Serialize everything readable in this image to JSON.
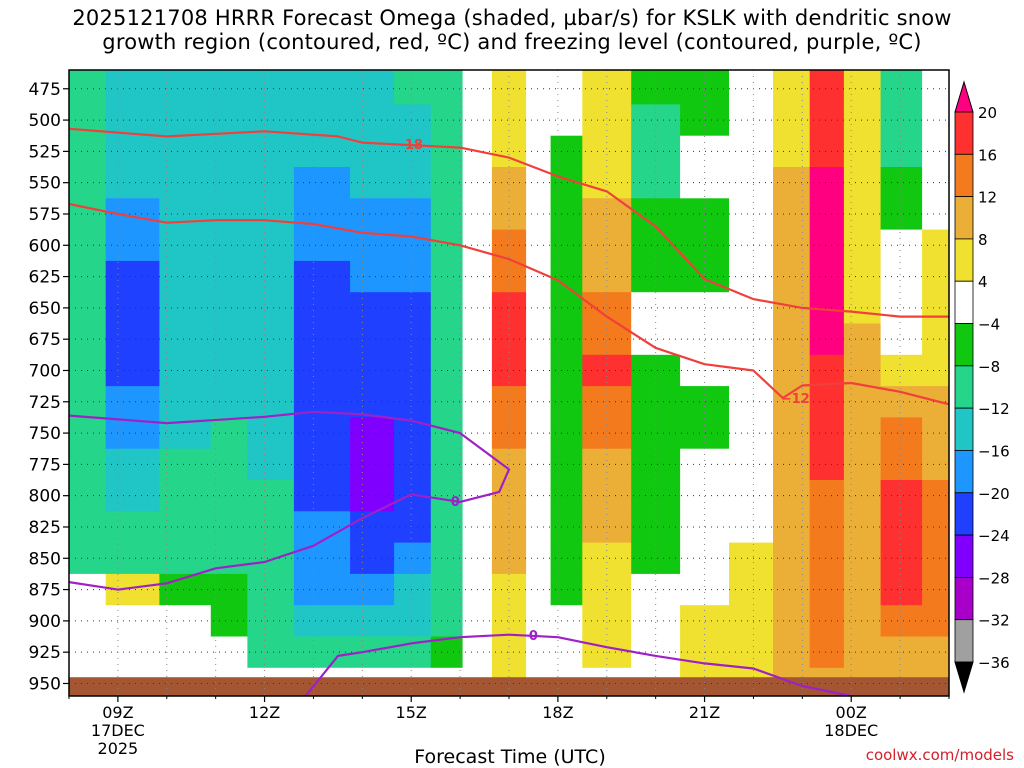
{
  "title_line1": "2025121708 HRRR Forecast Omega (shaded, µbar/s) for KSLK with dendritic snow",
  "title_line2": "growth region (contoured, red, ºC) and freezing level (contoured, purple, ºC)",
  "credit": "coolwx.com/models",
  "chart_data": {
    "type": "heatmap",
    "xlabel": "Forecast Time (UTC)",
    "ylabel": "",
    "x_ticks": [
      {
        "hour": 9,
        "lines": [
          "09Z",
          "17DEC",
          "2025"
        ]
      },
      {
        "hour": 12,
        "lines": [
          "12Z"
        ]
      },
      {
        "hour": 15,
        "lines": [
          "15Z"
        ]
      },
      {
        "hour": 18,
        "lines": [
          "18Z"
        ]
      },
      {
        "hour": 21,
        "lines": [
          "21Z"
        ]
      },
      {
        "hour": 24,
        "lines": [
          "00Z",
          "18DEC"
        ]
      }
    ],
    "xlim": [
      8,
      26
    ],
    "ylim": [
      960,
      460
    ],
    "y_scale": "pressure (hPa)",
    "y_ticks": [
      475,
      500,
      525,
      550,
      575,
      600,
      625,
      650,
      675,
      700,
      725,
      750,
      775,
      800,
      825,
      850,
      875,
      900,
      925,
      950
    ],
    "grid": true,
    "colorbar": {
      "levels": [
        20,
        16,
        12,
        8,
        4,
        -4,
        -8,
        -12,
        -16,
        -20,
        -24,
        -28,
        -32,
        -36
      ],
      "labels": [
        "20",
        "16",
        "12",
        "8",
        "4",
        "−4",
        "−8",
        "−12",
        "−16",
        "−20",
        "−24",
        "−28",
        "−32",
        "−36"
      ],
      "colors": [
        "#ff0080",
        "#ff3030",
        "#f47a1e",
        "#ebae37",
        "#f0e030",
        "#ffffff",
        "#10c810",
        "#24d58a",
        "#20c6c6",
        "#1e96ff",
        "#2040ff",
        "#8000ff",
        "#a800c8",
        "#a0a0a0",
        "#000000"
      ]
    },
    "omega_field": {
      "description_units": "µbar/s",
      "columns": [
        {
          "hour": 8.3,
          "omega": [
            -10,
            -10,
            -11,
            -11,
            -11,
            -11,
            -11,
            -11,
            -11,
            -11,
            -10,
            -10,
            -9,
            -9,
            -8,
            -8,
            0,
            0,
            0,
            0
          ]
        },
        {
          "hour": 9.2,
          "omega": [
            -13,
            -13,
            -14,
            -15,
            -17,
            -18,
            -20,
            -21,
            -21,
            -20,
            -18,
            -16,
            -14,
            -12,
            -10,
            -8,
            4,
            0,
            0,
            0
          ]
        },
        {
          "hour": 10.5,
          "omega": [
            -13,
            -13,
            -14,
            -14,
            -15,
            -15,
            -15,
            -15,
            -15,
            -14,
            -13,
            -12,
            -11,
            -10,
            -9,
            -8,
            -5,
            -3,
            0,
            0
          ]
        },
        {
          "hour": 11.3,
          "omega": [
            -14,
            -14,
            -14,
            -14,
            -14,
            -14,
            -14,
            -13,
            -13,
            -13,
            -12,
            -11,
            -11,
            -10,
            -9,
            -8,
            -6,
            -4,
            -2,
            0
          ]
        },
        {
          "hour": 12.0,
          "omega": [
            -13,
            -13,
            -13,
            -13,
            -14,
            -14,
            -14,
            -14,
            -13,
            -13,
            -13,
            -12,
            -12,
            -11,
            -10,
            -10,
            -9,
            -9,
            -8,
            0
          ]
        },
        {
          "hour": 13.2,
          "omega": [
            -13,
            -14,
            -15,
            -16,
            -17,
            -18,
            -21,
            -22,
            -22,
            -21,
            -21,
            -20,
            -20,
            -20,
            -19,
            -18,
            -16,
            -13,
            -9,
            0
          ]
        },
        {
          "hour": 14.3,
          "omega": [
            -12,
            -13,
            -14,
            -15,
            -17,
            -18,
            -19,
            -20,
            -21,
            -22,
            -23,
            -25,
            -25,
            -24,
            -22,
            -20,
            -17,
            -14,
            -9,
            0
          ]
        },
        {
          "hour": 15.0,
          "omega": [
            -11,
            -12,
            -14,
            -15,
            -16,
            -17,
            -18,
            -20,
            -21,
            -22,
            -23,
            -23,
            -22,
            -22,
            -20,
            -18,
            -15,
            -12,
            -8,
            0
          ]
        },
        {
          "hour": 15.8,
          "omega": [
            -9,
            -9,
            -10,
            -10,
            -10,
            -10,
            -10,
            -10,
            -10,
            -10,
            -10,
            -10,
            -10,
            -10,
            -10,
            -10,
            -9,
            -9,
            -6,
            0
          ]
        },
        {
          "hour": 16.3,
          "omega": [
            0,
            0,
            0,
            0,
            0,
            0,
            0,
            0,
            0,
            0,
            0,
            0,
            0,
            0,
            0,
            0,
            0,
            0,
            0,
            0
          ]
        },
        {
          "hour": 17.0,
          "omega": [
            4,
            5,
            6,
            8,
            10,
            12,
            15,
            17,
            18,
            17,
            15,
            13,
            11,
            10,
            9,
            8,
            7,
            6,
            5,
            4
          ]
        },
        {
          "hour": 17.7,
          "omega": [
            0,
            0,
            0,
            0,
            0,
            0,
            0,
            0,
            0,
            0,
            0,
            0,
            0,
            0,
            0,
            0,
            0,
            0,
            0,
            0
          ]
        },
        {
          "hour": 18.0,
          "omega": [
            0,
            0,
            -5,
            -6,
            -7,
            -7,
            -7,
            -7,
            -6,
            -6,
            -6,
            -6,
            -6,
            -6,
            -6,
            -5,
            -4,
            0,
            0,
            0
          ]
        },
        {
          "hour": 19.0,
          "omega": [
            4,
            4,
            5,
            6,
            8,
            9,
            10,
            12,
            14,
            16,
            14,
            12,
            10,
            9,
            8,
            7,
            6,
            5,
            4,
            3
          ]
        },
        {
          "hour": 20.0,
          "omega": [
            -7,
            -8,
            -9,
            -8,
            -6,
            -5,
            -4,
            0,
            0,
            -5,
            -6,
            -7,
            -7,
            -7,
            -6,
            -5,
            0,
            0,
            0,
            0
          ]
        },
        {
          "hour": 21.0,
          "omega": [
            -5,
            -5,
            0,
            0,
            -6,
            -7,
            -6,
            0,
            0,
            0,
            -5,
            -6,
            0,
            0,
            0,
            0,
            0,
            4,
            4,
            4
          ]
        },
        {
          "hour": 22.0,
          "omega": [
            0,
            0,
            0,
            0,
            0,
            0,
            0,
            0,
            0,
            0,
            0,
            0,
            0,
            0,
            0,
            4,
            5,
            5,
            5,
            4
          ]
        },
        {
          "hour": 22.8,
          "omega": [
            5,
            6,
            7,
            8,
            9,
            10,
            10,
            10,
            10,
            10,
            10,
            10,
            10,
            10,
            10,
            10,
            10,
            10,
            9,
            8
          ]
        },
        {
          "hour": 23.5,
          "omega": [
            16,
            18,
            19,
            20,
            21,
            21,
            21,
            20,
            20,
            19,
            18,
            17,
            16,
            14,
            13,
            13,
            14,
            14,
            12,
            9
          ]
        },
        {
          "hour": 24.2,
          "omega": [
            4,
            4,
            5,
            5,
            6,
            6,
            6,
            7,
            8,
            9,
            9,
            9,
            9,
            9,
            10,
            10,
            10,
            10,
            9,
            8
          ]
        },
        {
          "hour": 25.0,
          "omega": [
            -8,
            -9,
            -8,
            -6,
            -4,
            0,
            0,
            0,
            0,
            5,
            8,
            12,
            15,
            17,
            18,
            19,
            17,
            14,
            11,
            8
          ]
        },
        {
          "hour": 25.9,
          "omega": [
            0,
            0,
            0,
            0,
            0,
            4,
            4,
            5,
            6,
            7,
            8,
            9,
            10,
            12,
            13,
            14,
            13,
            12,
            10,
            8
          ]
        }
      ]
    },
    "contours": [
      {
        "label": "-18",
        "color": "#f0403c",
        "points": [
          [
            8,
            507
          ],
          [
            10,
            513
          ],
          [
            12,
            509
          ],
          [
            13.5,
            513
          ],
          [
            14,
            518
          ],
          [
            15,
            520
          ],
          [
            16,
            522
          ],
          [
            17,
            530
          ],
          [
            18,
            545
          ],
          [
            19,
            557
          ],
          [
            20,
            585
          ],
          [
            21,
            627
          ],
          [
            22,
            643
          ],
          [
            23,
            650
          ],
          [
            24,
            653
          ],
          [
            25,
            657
          ],
          [
            26,
            657
          ]
        ]
      },
      {
        "label": "",
        "color": "#f0403c",
        "points": [
          [
            8,
            567
          ],
          [
            9,
            575
          ],
          [
            10,
            582
          ],
          [
            11,
            580
          ],
          [
            12,
            580
          ],
          [
            13,
            583
          ],
          [
            14,
            590
          ],
          [
            15,
            593
          ],
          [
            16,
            600
          ],
          [
            17,
            611
          ],
          [
            18,
            628
          ],
          [
            19,
            657
          ],
          [
            20,
            682
          ],
          [
            21,
            695
          ],
          [
            22,
            700
          ],
          [
            22.6,
            722
          ],
          [
            23,
            712
          ],
          [
            24,
            710
          ],
          [
            25,
            717
          ],
          [
            26,
            727
          ]
        ]
      },
      {
        "label": "0",
        "color": "#a020c8",
        "points": [
          [
            8,
            736
          ],
          [
            10,
            742
          ],
          [
            12,
            737
          ],
          [
            13,
            733
          ],
          [
            14,
            735
          ],
          [
            15,
            740
          ],
          [
            16,
            750
          ],
          [
            17,
            779
          ],
          [
            16.8,
            797
          ],
          [
            16,
            805
          ],
          [
            15,
            799
          ],
          [
            14,
            818
          ],
          [
            13,
            840
          ],
          [
            12,
            853
          ],
          [
            11,
            858
          ],
          [
            10,
            870
          ],
          [
            9,
            875
          ],
          [
            8,
            869
          ]
        ]
      },
      {
        "label": "0",
        "color": "#a020c8",
        "points": [
          [
            12.8,
            962
          ],
          [
            13.5,
            928
          ],
          [
            14,
            925
          ],
          [
            15,
            918
          ],
          [
            16,
            913
          ],
          [
            17,
            911
          ],
          [
            18,
            913
          ],
          [
            19,
            921
          ],
          [
            20,
            928
          ],
          [
            21,
            934
          ],
          [
            22,
            938
          ],
          [
            23,
            952
          ],
          [
            24,
            960
          ]
        ]
      }
    ]
  }
}
